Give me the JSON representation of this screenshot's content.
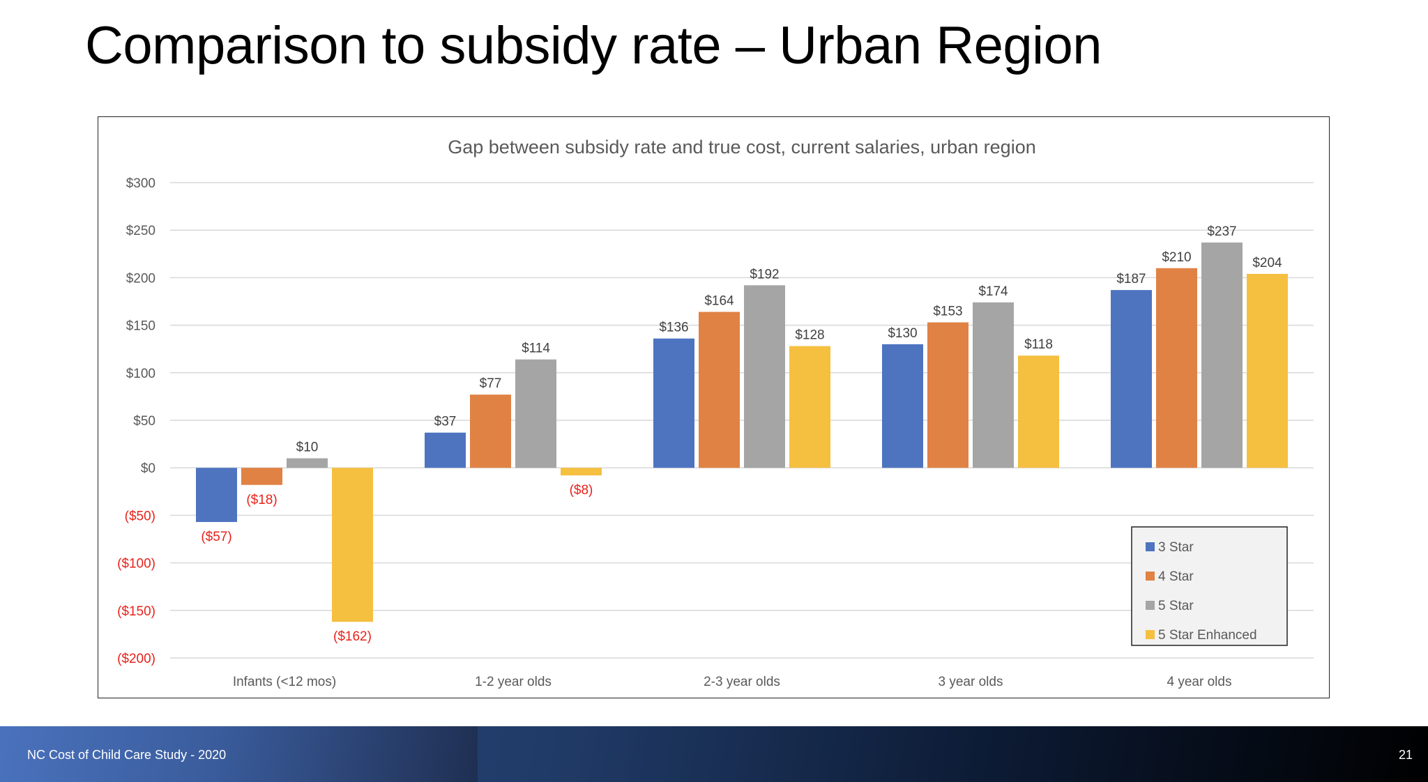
{
  "slide": {
    "title": "Comparison to subsidy rate – Urban Region",
    "footer_text": "NC Cost of Child Care Study - 2020",
    "page_number": "21"
  },
  "chart_data": {
    "type": "bar",
    "title": "Gap between subsidy rate and true cost, current salaries, urban region",
    "xlabel": "",
    "ylabel": "",
    "categories": [
      "Infants (<12 mos)",
      "1-2 year olds",
      "2-3 year olds",
      "3 year olds",
      "4 year olds"
    ],
    "series": [
      {
        "name": "3 Star",
        "color": "#4e74c0",
        "values": [
          -57,
          37,
          136,
          130,
          187
        ],
        "labels": [
          "($57)",
          "$37",
          "$136",
          "$130",
          "$187"
        ]
      },
      {
        "name": "4 Star",
        "color": "#e08244",
        "values": [
          -18,
          77,
          164,
          153,
          210
        ],
        "labels": [
          "($18)",
          "$77",
          "$164",
          "$153",
          "$210"
        ]
      },
      {
        "name": "5 Star",
        "color": "#a5a5a5",
        "values": [
          10,
          114,
          192,
          174,
          237
        ],
        "labels": [
          "$10",
          "$114",
          "$192",
          "$174",
          "$237"
        ]
      },
      {
        "name": "5 Star Enhanced",
        "color": "#f5bf40",
        "values": [
          -162,
          -8,
          128,
          118,
          204
        ],
        "labels": [
          "($162)",
          "($8)",
          "$128",
          "$118",
          "$204"
        ]
      }
    ],
    "ylim": [
      -200,
      300
    ],
    "yticks": [
      300,
      250,
      200,
      150,
      100,
      50,
      0,
      -50,
      -100,
      -150,
      -200
    ],
    "ytick_labels": [
      "$300",
      "$250",
      "$200",
      "$150",
      "$100",
      "$50",
      "$0",
      "($50)",
      "($100)",
      "($150)",
      "($200)"
    ],
    "negative_label_color": "#e8221b",
    "positive_label_color": "#404040",
    "grid": true,
    "legend_position": "bottom-right"
  }
}
